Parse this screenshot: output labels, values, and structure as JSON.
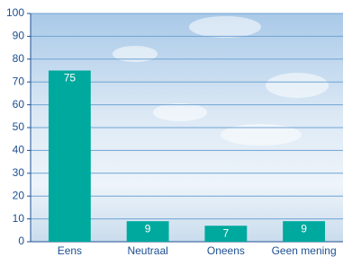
{
  "chart_data": {
    "type": "bar",
    "categories": [
      "Eens",
      "Neutraal",
      "Oneens",
      "Geen mening"
    ],
    "values": [
      75,
      9,
      7,
      9
    ],
    "color": "#00a99d",
    "ylim": [
      0,
      100
    ],
    "yticks": [
      0,
      10,
      20,
      30,
      40,
      50,
      60,
      70,
      80,
      90,
      100
    ],
    "grid": true
  }
}
